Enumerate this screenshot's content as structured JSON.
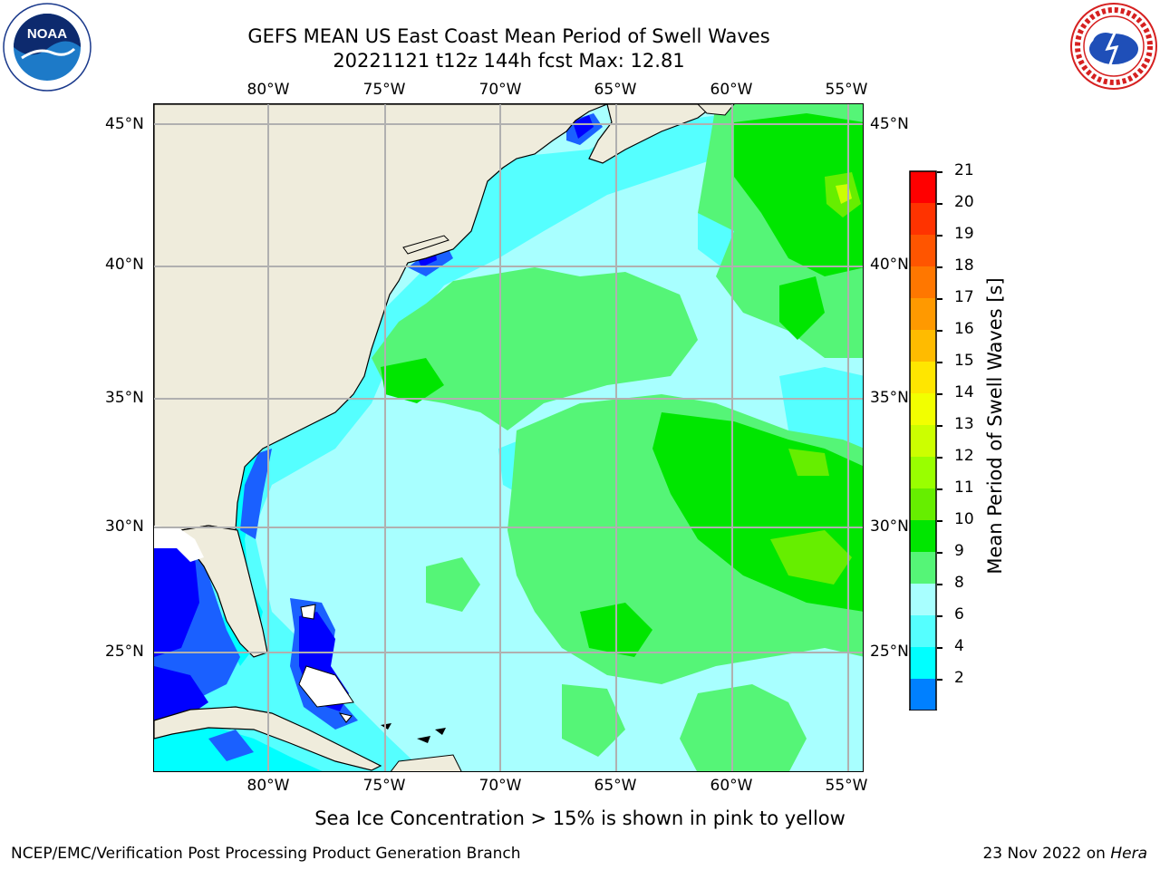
{
  "header": {
    "title_line1": "GEFS MEAN US East Coast Mean Period of Swell Waves",
    "title_line2": "20221121 t12z 144h fcst   Max: 12.81"
  },
  "map": {
    "longitude_labels": [
      "80°W",
      "75°W",
      "70°W",
      "65°W",
      "60°W",
      "55°W"
    ],
    "latitude_labels_left": [
      "45°N",
      "40°N",
      "35°N",
      "30°N",
      "25°N"
    ],
    "latitude_labels_right": [
      "45°N",
      "40°N",
      "35°N",
      "30°N",
      "25°N"
    ],
    "land_color": "#efecdc",
    "gridline_color": "#b0b0b0"
  },
  "colorbar": {
    "label": "Mean Period of Swell Waves [s]",
    "ticks": [
      "21",
      "20",
      "19",
      "18",
      "17",
      "16",
      "15",
      "14",
      "13",
      "12",
      "11",
      "10",
      "9",
      "8",
      "6",
      "4",
      "2"
    ],
    "colors_top_to_bottom": [
      "#ff0000",
      "#ff3300",
      "#ff5500",
      "#ff7700",
      "#ff9900",
      "#ffbb00",
      "#ffe600",
      "#f2ff00",
      "#ccff00",
      "#99ff00",
      "#66ee00",
      "#00e600",
      "#55f577",
      "#a8ffff",
      "#55ffff",
      "#00ffff",
      "#0080ff"
    ],
    "extend_color": "#0000ff"
  },
  "footer": {
    "ice_note": "Sea Ice Concentration > 15% is shown in pink to yellow",
    "credit": "NCEP/EMC/Verification Post Processing Product Generation Branch",
    "date": "23 Nov 2022 on",
    "machine": "Hera"
  },
  "logos": {
    "left": "noaa-logo",
    "right": "national-weather-service-logo",
    "noaa_text": "NOAA"
  }
}
